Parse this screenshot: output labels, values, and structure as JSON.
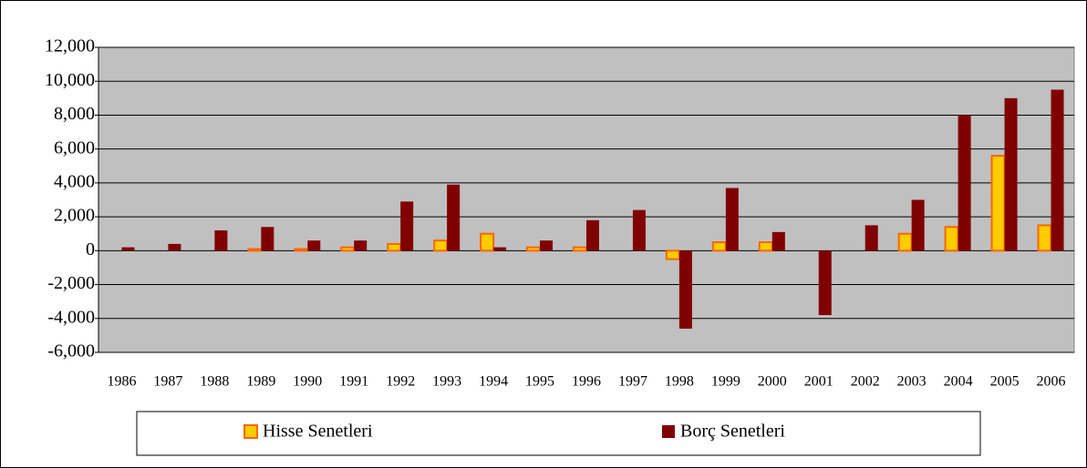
{
  "chart_data": {
    "type": "bar",
    "categories": [
      "1986",
      "1987",
      "1988",
      "1989",
      "1990",
      "1991",
      "1992",
      "1993",
      "1994",
      "1995",
      "1996",
      "1997",
      "1998",
      "1999",
      "2000",
      "2001",
      "2002",
      "2003",
      "2004",
      "2005",
      "2006"
    ],
    "series": [
      {
        "name": "Hisse Senetleri",
        "color": "#ffcc00",
        "edge": "#ff6600",
        "values": [
          0,
          0,
          0,
          100,
          100,
          200,
          400,
          600,
          1000,
          200,
          200,
          0,
          -500,
          500,
          500,
          0,
          0,
          1000,
          1400,
          5600,
          1500
        ]
      },
      {
        "name": "Borç Senetleri",
        "color": "#800000",
        "edge": "#800000",
        "values": [
          200,
          400,
          1200,
          1400,
          600,
          600,
          2900,
          3900,
          200,
          600,
          1800,
          2400,
          -4600,
          3700,
          1100,
          -3800,
          1500,
          3000,
          8000,
          9000,
          9500
        ]
      }
    ],
    "ylim": [
      -6000,
      12000
    ],
    "yticks": [
      {
        "value": -6000,
        "label": "-6,000"
      },
      {
        "value": -4000,
        "label": "-4,000"
      },
      {
        "value": -2000,
        "label": "-2,000"
      },
      0,
      {
        "value": 2000,
        "label": "2,000"
      },
      {
        "value": 4000,
        "label": "4,000"
      },
      {
        "value": 6000,
        "label": "6,000"
      },
      {
        "value": 8000,
        "label": "8,000"
      },
      {
        "value": 10000,
        "label": "10,000"
      },
      {
        "value": 12000,
        "label": "12,000"
      }
    ],
    "grid": true,
    "background": "#c0c0c0"
  }
}
